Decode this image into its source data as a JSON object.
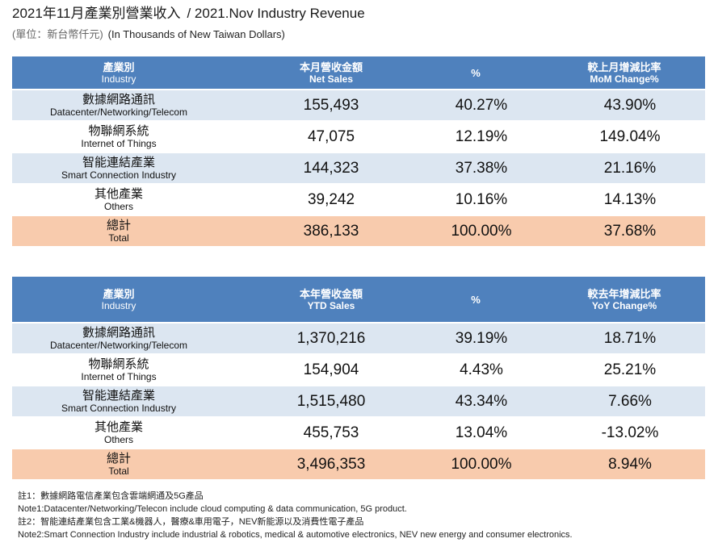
{
  "title": {
    "zh": "2021年11月產業別營業收入",
    "en": "/ 2021.Nov Industry Revenue"
  },
  "unit": {
    "zh": "(單位：新台幣仟元)",
    "en": "(In Thousands of New Taiwan Dollars)"
  },
  "colors": {
    "header_bg": "#4f81bd",
    "header_text": "#ffffff",
    "band_bg": "#dce6f1",
    "row_bg": "#ffffff",
    "total_bg": "#f8cbad"
  },
  "monthly_table": {
    "headers": {
      "industry": {
        "zh": "產業別",
        "en": "Industry"
      },
      "sales": {
        "zh": "本月營收金額",
        "en": "Net Sales"
      },
      "share": "%",
      "change": {
        "zh": "較上月增減比率",
        "en": "MoM Change%"
      }
    },
    "rows": [
      {
        "zh": "數據網路通訊",
        "en": "Datacenter/Networking/Telecom",
        "sales": "155,493",
        "share": "40.27%",
        "change": "43.90%"
      },
      {
        "zh": "物聯網系統",
        "en": "Internet of Things",
        "sales": "47,075",
        "share": "12.19%",
        "change": "149.04%"
      },
      {
        "zh": "智能連結產業",
        "en": "Smart Connection Industry",
        "sales": "144,323",
        "share": "37.38%",
        "change": "21.16%"
      },
      {
        "zh": "其他產業",
        "en": "Others",
        "sales": "39,242",
        "share": "10.16%",
        "change": "14.13%"
      }
    ],
    "total": {
      "zh": "總計",
      "en": "Total",
      "sales": "386,133",
      "share": "100.00%",
      "change": "37.68%"
    }
  },
  "ytd_table": {
    "headers": {
      "industry": {
        "zh": "產業別",
        "en": "Industry"
      },
      "sales": {
        "zh": "本年營收金額",
        "en": "YTD Sales"
      },
      "share": "%",
      "change": {
        "zh": "較去年增減比率",
        "en": "YoY Change%"
      }
    },
    "rows": [
      {
        "zh": "數據網路通訊",
        "en": "Datacenter/Networking/Telecom",
        "sales": "1,370,216",
        "share": "39.19%",
        "change": "18.71%"
      },
      {
        "zh": "物聯網系統",
        "en": "Internet of Things",
        "sales": "154,904",
        "share": "4.43%",
        "change": "25.21%"
      },
      {
        "zh": "智能連結產業",
        "en": "Smart Connection Industry",
        "sales": "1,515,480",
        "share": "43.34%",
        "change": "7.66%"
      },
      {
        "zh": "其他產業",
        "en": "Others",
        "sales": "455,753",
        "share": "13.04%",
        "change": "-13.02%"
      }
    ],
    "total": {
      "zh": "總計",
      "en": "Total",
      "sales": "3,496,353",
      "share": "100.00%",
      "change": "8.94%"
    }
  },
  "footnotes": [
    "註1：數據網路電信產業包含雲端網通及5G產品",
    "Note1:Datacenter/Networking/Telecon include cloud computing & data communication, 5G product.",
    "註2：智能連結產業包含工業&機器人，醫療&車用電子，NEV新能源以及消費性電子產品",
    "Note2:Smart Connection Industry include industrial & robotics, medical & automotive electronics, NEV new energy and consumer electronics."
  ]
}
